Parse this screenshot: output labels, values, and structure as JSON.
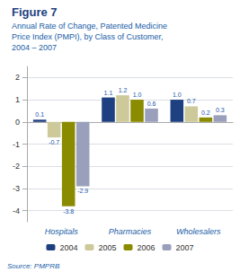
{
  "chart_data": {
    "type": "bar",
    "title": "Figure 7",
    "subtitle": "Annual Rate of Change, Patented Medicine\nPrice Index (PMPI), by Class of Customer,\n2004 – 2007",
    "categories": [
      "Hospitals",
      "Pharmacies",
      "Wholesalers"
    ],
    "series": [
      {
        "name": "2004",
        "color": "#1e4080",
        "values": [
          0.1,
          1.1,
          1.0
        ],
        "value_labels": [
          "0.1",
          "1.1",
          "1.0"
        ]
      },
      {
        "name": "2005",
        "color": "#cdc99a",
        "values": [
          -0.7,
          1.2,
          0.7
        ],
        "value_labels": [
          "-0.7",
          "1.2",
          "0.7"
        ]
      },
      {
        "name": "2006",
        "color": "#8b8b00",
        "values": [
          -3.8,
          1.0,
          0.2
        ],
        "value_labels": [
          "-3.8",
          "1.0",
          "0.2"
        ]
      },
      {
        "name": "2007",
        "color": "#9aa0bb",
        "values": [
          -2.9,
          0.6,
          0.3
        ],
        "value_labels": [
          "-2.9",
          "0.6",
          "0.3"
        ]
      }
    ],
    "ylim": [
      -4.5,
      2.5
    ],
    "yticks": [
      -4,
      -3,
      -2,
      -1,
      0,
      1,
      2
    ],
    "grid": true,
    "legend": "bottom",
    "data_labels": true,
    "annotations": [
      "Source: PMPRB"
    ]
  }
}
